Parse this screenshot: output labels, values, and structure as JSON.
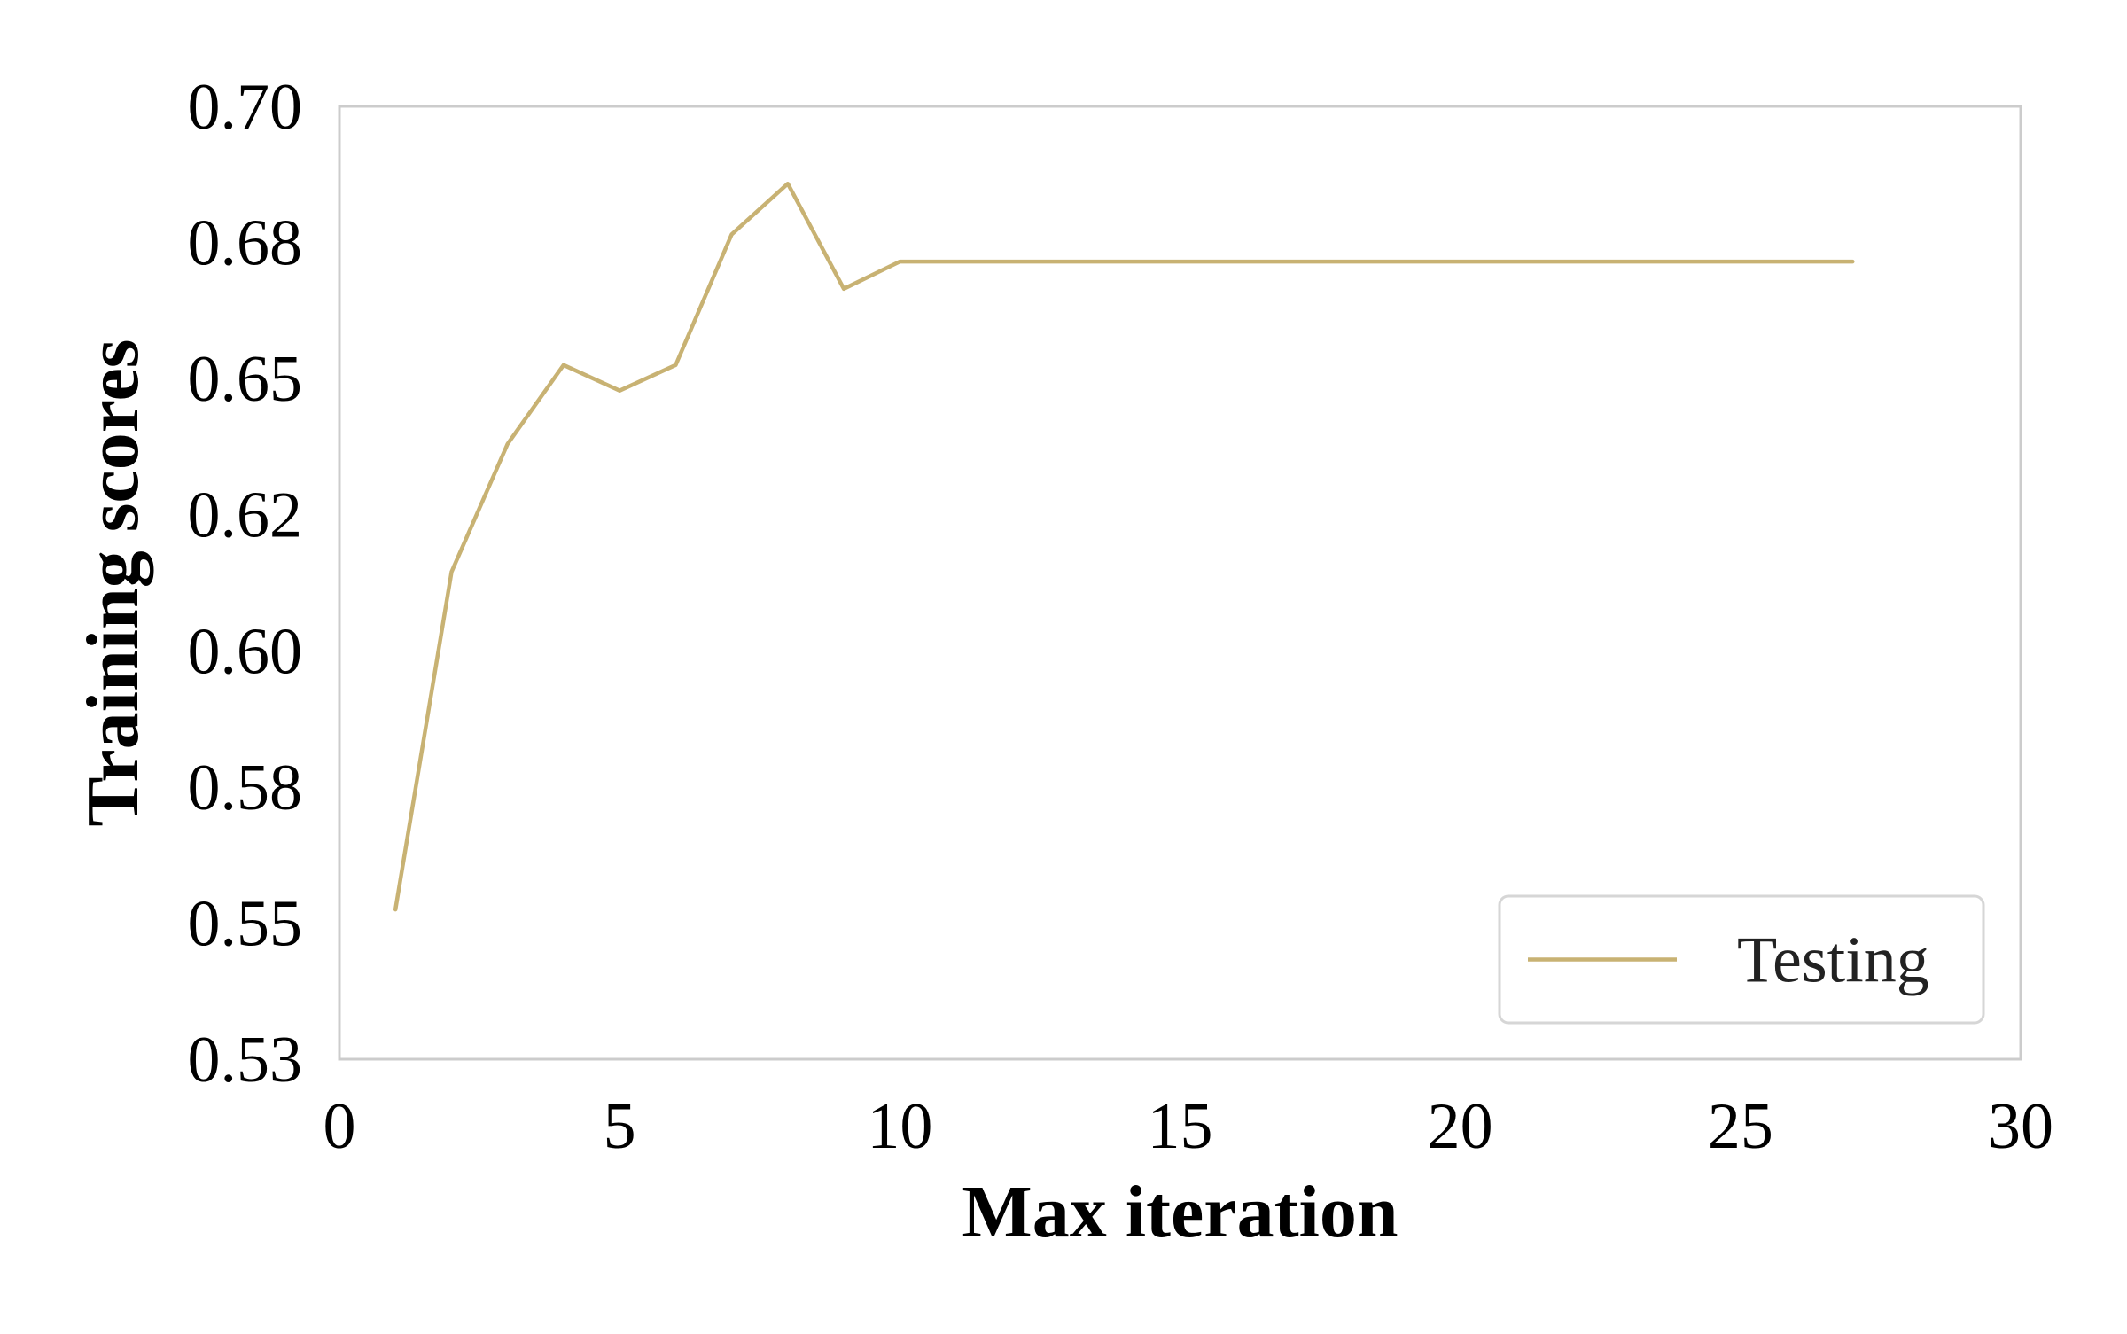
{
  "chart_data": {
    "type": "line",
    "title": "",
    "xlabel": "Max iteration",
    "ylabel": "Training scores",
    "xlim": [
      0,
      30
    ],
    "ylim": [
      0.525,
      0.7
    ],
    "xticks": [
      0,
      5,
      10,
      15,
      20,
      25,
      30
    ],
    "xtick_labels": [
      "0",
      "5",
      "10",
      "15",
      "20",
      "25",
      "30"
    ],
    "yticks": [
      0.525,
      0.55,
      0.575,
      0.6,
      0.625,
      0.65,
      0.675,
      0.7
    ],
    "ytick_labels": [
      "0.53",
      "0.55",
      "0.58",
      "0.60",
      "0.62",
      "0.65",
      "0.68",
      "0.70"
    ],
    "grid": false,
    "legend_position": "lower-right",
    "series": [
      {
        "name": "Testing",
        "color": "#c8b273",
        "x": [
          1,
          2,
          3,
          4,
          5,
          6,
          7,
          8,
          9,
          10,
          11,
          12,
          13,
          14,
          15,
          16,
          17,
          18,
          19,
          20,
          21,
          22,
          23,
          24,
          25,
          26,
          27
        ],
        "y": [
          0.5525,
          0.6145,
          0.638,
          0.6525,
          0.6478,
          0.6525,
          0.6765,
          0.6858,
          0.6665,
          0.6715,
          0.6715,
          0.6715,
          0.6715,
          0.6715,
          0.6715,
          0.6715,
          0.6715,
          0.6715,
          0.6715,
          0.6715,
          0.6715,
          0.6715,
          0.6715,
          0.6715,
          0.6715,
          0.6715,
          0.6715
        ]
      }
    ],
    "frame_color": "#cccccc"
  }
}
